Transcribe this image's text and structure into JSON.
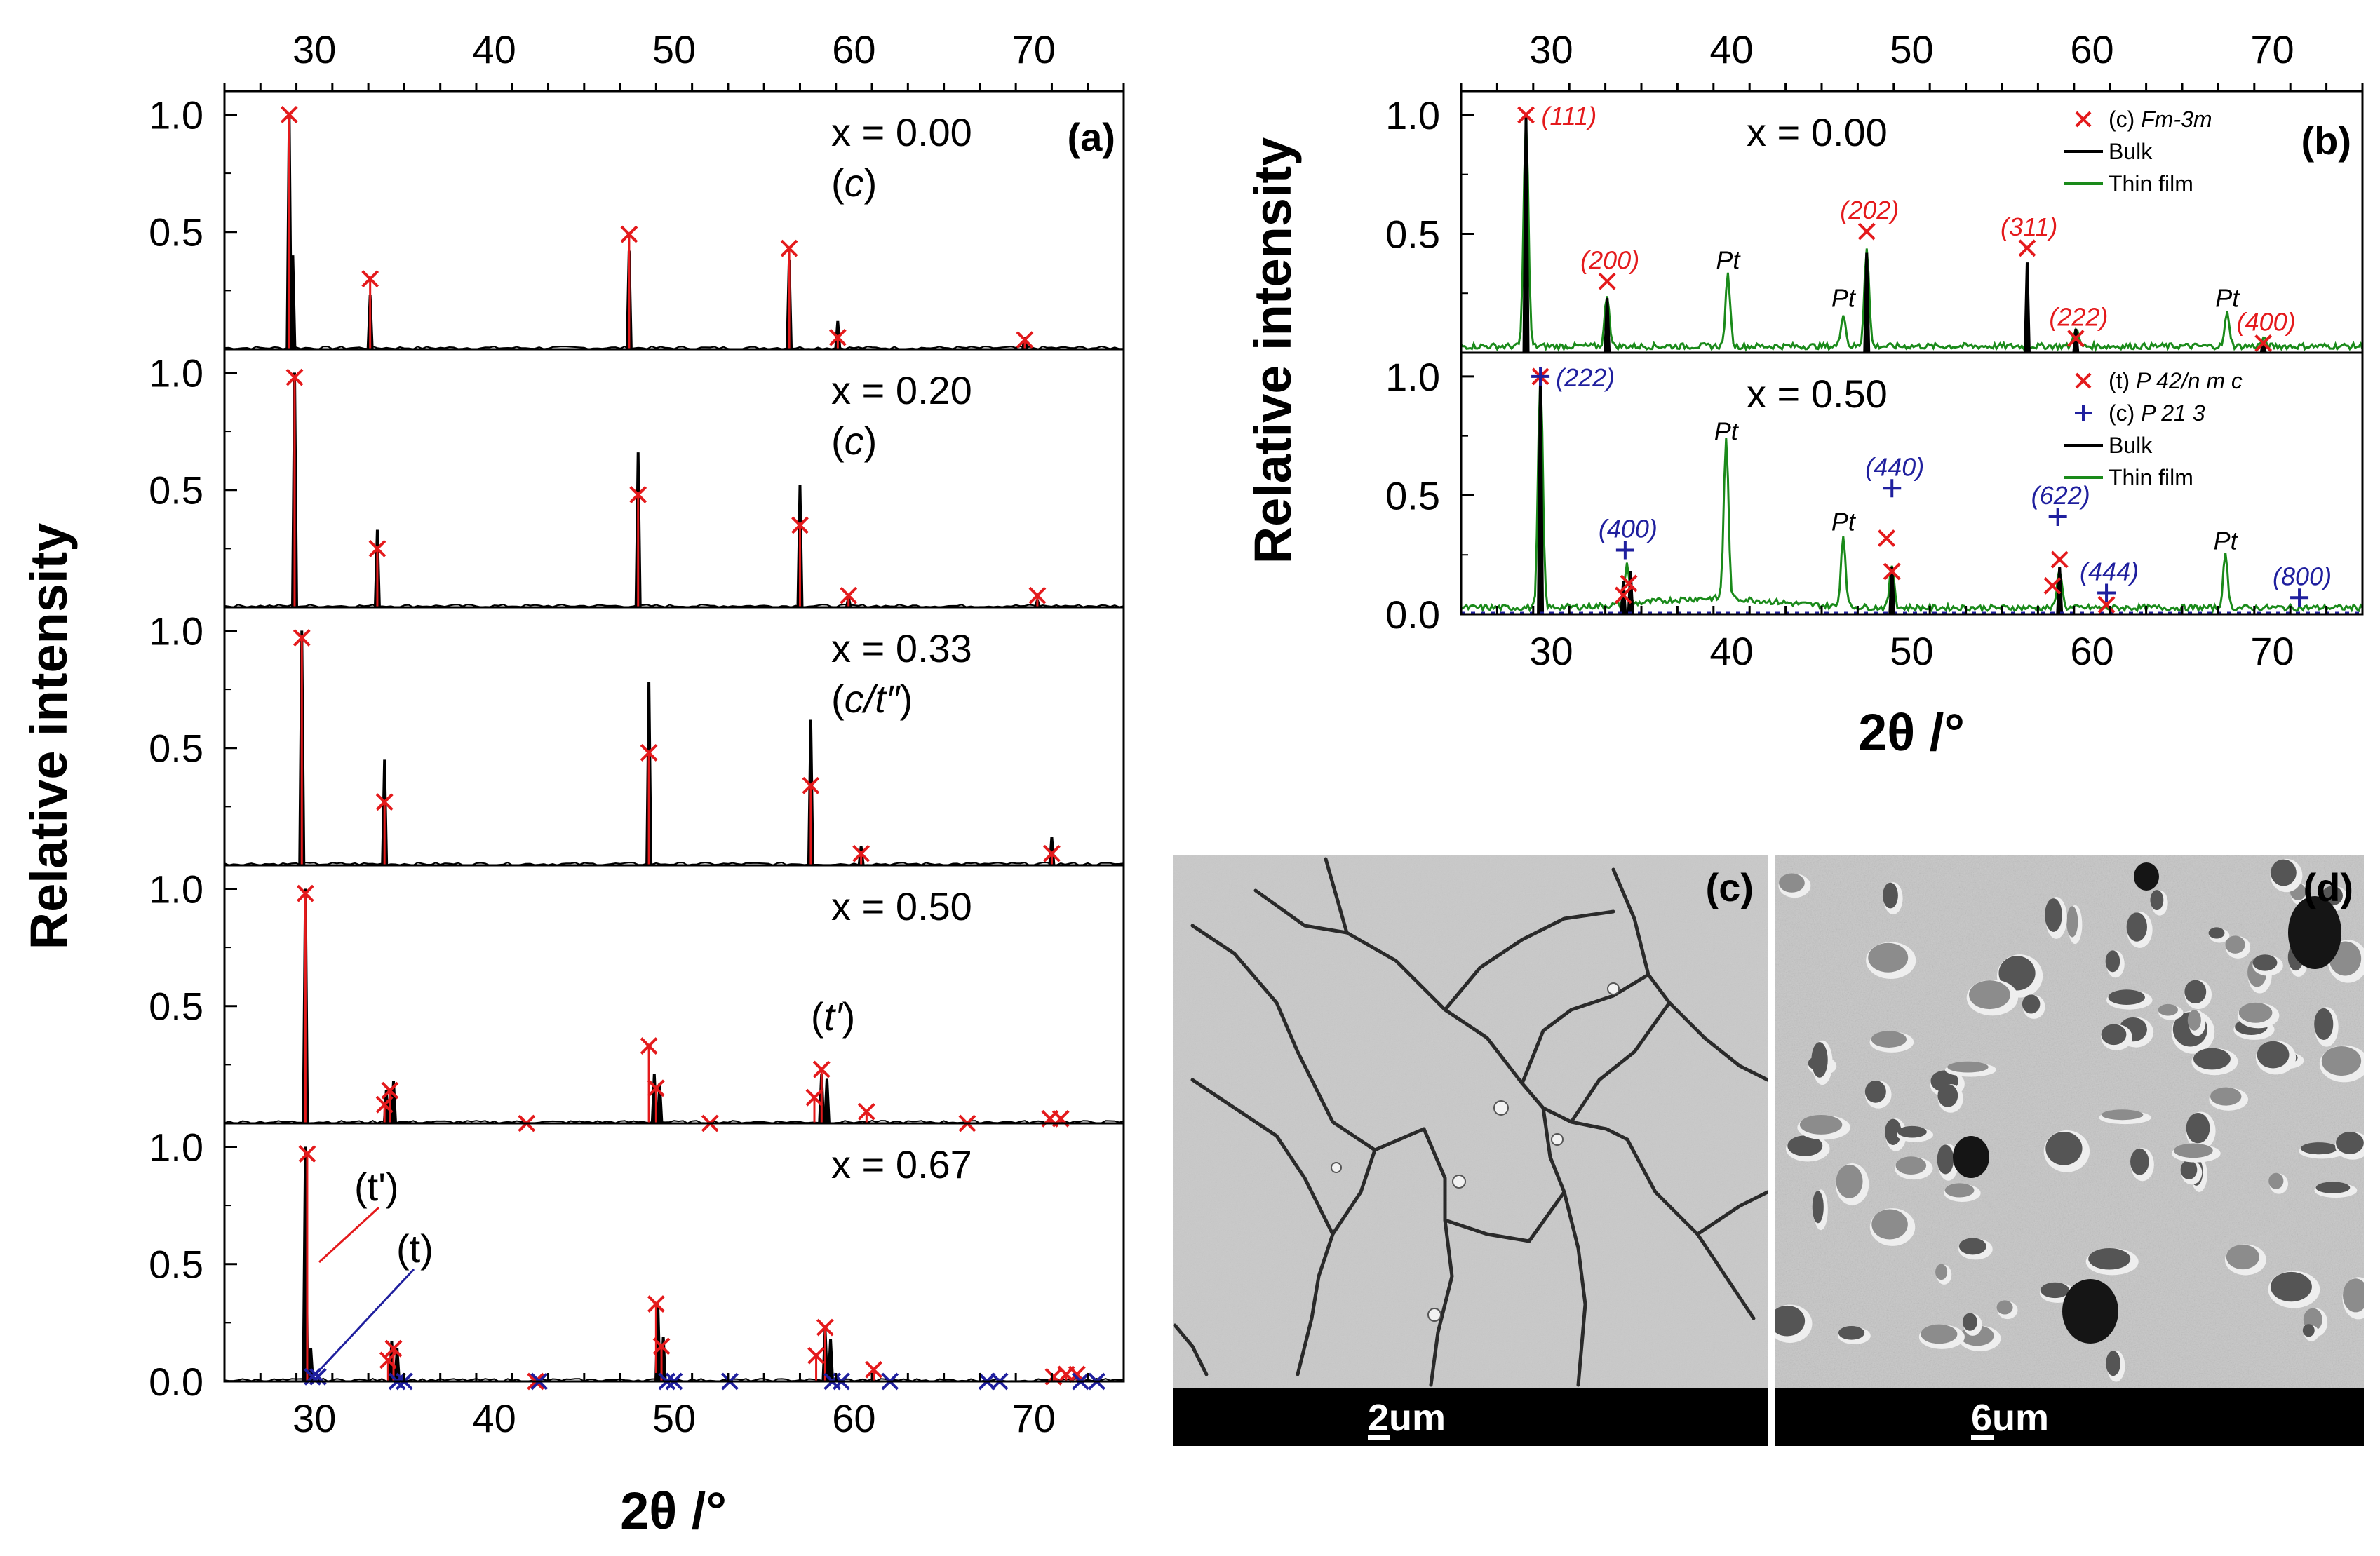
{
  "chart_data": [
    {
      "id": "a",
      "type": "stacked-diffraction",
      "panel_label": "(a)",
      "xlabel": "2θ /°",
      "ylabel": "Relative intensity",
      "xlim": [
        25,
        75
      ],
      "xticks": [
        30,
        40,
        50,
        60,
        70
      ],
      "ylim": [
        0,
        1.1
      ],
      "yticks": [
        "0.0",
        "0.5",
        "1.0"
      ],
      "panels": [
        {
          "composition": "x = 0.00",
          "phase": "(c)",
          "phase_parts": [
            "(",
            "c",
            ")"
          ],
          "bulk": [
            [
              28.6,
              1.0
            ],
            [
              28.8,
              0.4
            ],
            [
              33.1,
              0.23
            ],
            [
              47.5,
              0.42
            ],
            [
              56.4,
              0.38
            ],
            [
              59.1,
              0.12
            ],
            [
              69.5,
              0.05
            ]
          ],
          "markers_red": [
            [
              28.6,
              1.0
            ],
            [
              33.1,
              0.3
            ],
            [
              47.5,
              0.49
            ],
            [
              56.4,
              0.43
            ],
            [
              59.1,
              0.05
            ],
            [
              69.5,
              0.04
            ]
          ],
          "markers_blue": []
        },
        {
          "composition": "x = 0.20",
          "phase": "(c)",
          "phase_parts": [
            "(",
            "c",
            ")"
          ],
          "bulk": [
            [
              28.9,
              1.0
            ],
            [
              33.5,
              0.33
            ],
            [
              48.0,
              0.66
            ],
            [
              57.0,
              0.52
            ],
            [
              59.7,
              0.04
            ],
            [
              70.2,
              0.03
            ]
          ],
          "markers_red": [
            [
              28.9,
              0.98
            ],
            [
              33.5,
              0.25
            ],
            [
              48.0,
              0.48
            ],
            [
              57.0,
              0.35
            ],
            [
              59.7,
              0.05
            ],
            [
              70.2,
              0.05
            ]
          ],
          "markers_blue": []
        },
        {
          "composition": "x = 0.33",
          "phase": "(c/t'')",
          "phase_parts": [
            "(",
            "c/t″",
            ")"
          ],
          "bulk": [
            [
              29.3,
              1.0
            ],
            [
              33.9,
              0.45
            ],
            [
              48.6,
              0.78
            ],
            [
              57.6,
              0.62
            ],
            [
              60.4,
              0.08
            ],
            [
              71.0,
              0.12
            ]
          ],
          "markers_red": [
            [
              29.3,
              0.97
            ],
            [
              33.9,
              0.27
            ],
            [
              48.6,
              0.48
            ],
            [
              57.6,
              0.34
            ],
            [
              60.4,
              0.05
            ],
            [
              71.0,
              0.05
            ]
          ],
          "markers_blue": []
        },
        {
          "composition": "x = 0.50",
          "phase": "(t')",
          "phase_parts": [
            "(",
            "t′",
            ")"
          ],
          "bulk": [
            [
              29.5,
              1.0
            ],
            [
              34.0,
              0.14
            ],
            [
              34.4,
              0.18
            ],
            [
              48.9,
              0.21
            ],
            [
              49.2,
              0.17
            ],
            [
              58.2,
              0.21
            ],
            [
              58.5,
              0.19
            ]
          ],
          "markers_red": [
            [
              29.5,
              0.98
            ],
            [
              33.9,
              0.08
            ],
            [
              34.2,
              0.14
            ],
            [
              41.8,
              0.0
            ],
            [
              48.6,
              0.33
            ],
            [
              49.0,
              0.15
            ],
            [
              52.0,
              0.0
            ],
            [
              57.8,
              0.11
            ],
            [
              58.2,
              0.23
            ],
            [
              60.7,
              0.05
            ],
            [
              66.3,
              0.0
            ],
            [
              70.9,
              0.02
            ],
            [
              71.5,
              0.02
            ]
          ],
          "markers_blue": []
        },
        {
          "composition": "x = 0.67",
          "phase": "",
          "annotations": [
            "(t')",
            "(t)"
          ],
          "bulk": [
            [
              29.5,
              1.0
            ],
            [
              29.8,
              0.14
            ],
            [
              34.3,
              0.17
            ],
            [
              34.6,
              0.14
            ],
            [
              49.1,
              0.33
            ],
            [
              49.4,
              0.19
            ],
            [
              58.4,
              0.22
            ],
            [
              58.7,
              0.18
            ]
          ],
          "markers_red": [
            [
              29.6,
              0.97
            ],
            [
              34.1,
              0.09
            ],
            [
              34.4,
              0.14
            ],
            [
              42.3,
              0.0
            ],
            [
              49.0,
              0.33
            ],
            [
              49.3,
              0.15
            ],
            [
              57.9,
              0.11
            ],
            [
              58.4,
              0.23
            ],
            [
              61.1,
              0.05
            ],
            [
              71.1,
              0.02
            ],
            [
              71.8,
              0.03
            ],
            [
              72.4,
              0.03
            ]
          ],
          "markers_blue": [
            [
              29.9,
              0.02
            ],
            [
              30.2,
              0.02
            ],
            [
              34.6,
              0.0
            ],
            [
              35.0,
              0.0
            ],
            [
              42.5,
              0.0
            ],
            [
              49.6,
              0.0
            ],
            [
              50.0,
              0.0
            ],
            [
              53.1,
              0.0
            ],
            [
              58.8,
              0.0
            ],
            [
              59.3,
              0.0
            ],
            [
              62.0,
              0.0
            ],
            [
              67.4,
              0.0
            ],
            [
              68.1,
              0.0
            ],
            [
              72.6,
              0.0
            ],
            [
              73.5,
              0.0
            ]
          ]
        }
      ]
    },
    {
      "id": "b",
      "type": "stacked-diffraction",
      "panel_label": "(b)",
      "xlabel": "2θ /°",
      "ylabel": "Relative intensity",
      "xlim": [
        25,
        75
      ],
      "xticks": [
        30,
        40,
        50,
        60,
        70
      ],
      "ylim": [
        0,
        1.1
      ],
      "yticks": [
        "0.0",
        "0.5",
        "1.0"
      ],
      "panels": [
        {
          "composition": "x = 0.00",
          "legend": [
            {
              "marker": "×",
              "color": "#e41a1c",
              "label_pre": "(c) ",
              "label_ital": "Fm-3m"
            },
            {
              "line": "#000000",
              "label": "Bulk"
            },
            {
              "line": "#1a8a1a",
              "label": "Thin film"
            }
          ],
          "bulk": [
            [
              28.6,
              1.0
            ],
            [
              33.1,
              0.23
            ],
            [
              47.5,
              0.42
            ],
            [
              56.4,
              0.38
            ],
            [
              59.1,
              0.1
            ],
            [
              69.5,
              0.05
            ]
          ],
          "film": [
            [
              28.6,
              0.97
            ],
            [
              33.1,
              0.22
            ],
            [
              39.8,
              0.3
            ],
            [
              46.2,
              0.14
            ],
            [
              47.5,
              0.42
            ],
            [
              59.1,
              0.08
            ],
            [
              67.5,
              0.14
            ],
            [
              69.5,
              0.03
            ]
          ],
          "markers_red": [
            [
              28.6,
              1.0
            ],
            [
              33.1,
              0.3
            ],
            [
              47.5,
              0.51
            ],
            [
              56.4,
              0.44
            ],
            [
              59.1,
              0.06
            ],
            [
              69.5,
              0.04
            ]
          ],
          "markers_blue": [],
          "hkl": [
            {
              "x": 28.6,
              "y": 1.0,
              "label": "(111)",
              "color": "#e41a1c"
            },
            {
              "x": 33.1,
              "y": 0.3,
              "label": "(200)",
              "color": "#e41a1c"
            },
            {
              "x": 47.5,
              "y": 0.51,
              "label": "(202)",
              "color": "#e41a1c"
            },
            {
              "x": 56.4,
              "y": 0.44,
              "label": "(311)",
              "color": "#e41a1c"
            },
            {
              "x": 59.1,
              "y": 0.06,
              "label": "(222)",
              "color": "#e41a1c"
            },
            {
              "x": 69.5,
              "y": 0.04,
              "label": "(400)",
              "color": "#e41a1c"
            }
          ],
          "pt_labels": [
            [
              39.8,
              0.3
            ],
            [
              46.2,
              0.14
            ],
            [
              67.5,
              0.14
            ]
          ]
        },
        {
          "composition": "x = 0.50",
          "legend": [
            {
              "marker": "×",
              "color": "#e41a1c",
              "label_pre": "(t) ",
              "label_ital": "P 42/n m c"
            },
            {
              "marker": "+",
              "color": "#1f1f9e",
              "label_pre": "(c) ",
              "label_ital": "P 21 3"
            },
            {
              "line": "#000000",
              "label": "Bulk"
            },
            {
              "line": "#1a8a1a",
              "label": "Thin film"
            }
          ],
          "bulk": [
            [
              29.4,
              1.0
            ],
            [
              34.0,
              0.14
            ],
            [
              34.4,
              0.18
            ],
            [
              48.9,
              0.2
            ],
            [
              58.2,
              0.2
            ]
          ],
          "film": [
            [
              29.4,
              0.99
            ],
            [
              34.2,
              0.17
            ],
            [
              39.7,
              0.68
            ],
            [
              46.2,
              0.3
            ],
            [
              48.9,
              0.18
            ],
            [
              58.2,
              0.17
            ],
            [
              67.4,
              0.22
            ]
          ],
          "markers_red": [
            [
              29.4,
              1.0
            ],
            [
              34.0,
              0.08
            ],
            [
              34.3,
              0.13
            ],
            [
              48.6,
              0.32
            ],
            [
              48.9,
              0.18
            ],
            [
              57.8,
              0.12
            ],
            [
              58.2,
              0.23
            ],
            [
              60.8,
              0.04
            ]
          ],
          "markers_blue": [
            [
              29.4,
              1.0
            ],
            [
              34.1,
              0.27
            ],
            [
              48.9,
              0.53
            ],
            [
              58.1,
              0.41
            ],
            [
              60.8,
              0.09
            ],
            [
              71.5,
              0.07
            ]
          ],
          "hkl": [
            {
              "x": 29.4,
              "y": 1.0,
              "label": "(222)",
              "color": "#1f1f9e"
            },
            {
              "x": 34.1,
              "y": 0.27,
              "label": "(400)",
              "color": "#1f1f9e"
            },
            {
              "x": 48.9,
              "y": 0.53,
              "label": "(440)",
              "color": "#1f1f9e"
            },
            {
              "x": 58.1,
              "y": 0.41,
              "label": "(622)",
              "color": "#1f1f9e"
            },
            {
              "x": 60.8,
              "y": 0.09,
              "label": "(444)",
              "color": "#1f1f9e"
            },
            {
              "x": 71.5,
              "y": 0.07,
              "label": "(800)",
              "color": "#1f1f9e"
            }
          ],
          "pt_labels": [
            [
              39.7,
              0.68
            ],
            [
              46.2,
              0.3
            ],
            [
              67.4,
              0.22
            ]
          ]
        }
      ]
    }
  ],
  "sem_images": [
    {
      "panel_label": "(c)",
      "scale_bar": "2um",
      "scale_underline": "2"
    },
    {
      "panel_label": "(d)",
      "scale_bar": "6um",
      "scale_underline": "6"
    }
  ]
}
